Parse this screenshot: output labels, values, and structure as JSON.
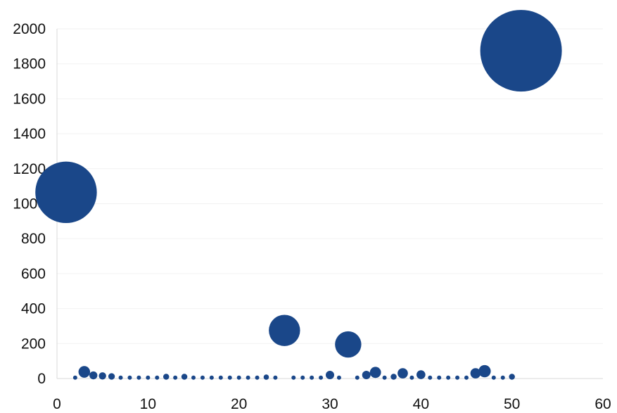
{
  "chart_data": {
    "type": "scatter",
    "title": "",
    "xlabel": "",
    "ylabel": "",
    "xlim": [
      0,
      60
    ],
    "ylim": [
      0,
      2000
    ],
    "x_ticks": [
      0,
      10,
      20,
      30,
      40,
      50,
      60
    ],
    "y_ticks": [
      0,
      200,
      400,
      600,
      800,
      1000,
      1200,
      1400,
      1600,
      1800,
      2000
    ],
    "grid": true,
    "legend": "none",
    "color": "#1a4789",
    "series": [
      {
        "x": [
          1,
          2,
          3,
          4,
          5,
          6,
          7,
          8,
          9,
          10,
          11,
          12,
          13,
          14,
          15,
          16,
          17,
          18,
          19,
          20,
          21,
          22,
          23,
          24,
          25,
          26,
          27,
          28,
          29,
          30,
          31,
          32,
          33,
          34,
          35,
          36,
          37,
          38,
          39,
          40,
          41,
          42,
          43,
          44,
          45,
          46,
          47,
          48,
          49,
          50,
          51
        ],
        "y": [
          1065,
          5,
          38,
          18,
          15,
          12,
          5,
          5,
          5,
          5,
          5,
          10,
          5,
          10,
          5,
          5,
          5,
          5,
          5,
          5,
          5,
          5,
          8,
          5,
          275,
          5,
          5,
          5,
          5,
          20,
          5,
          195,
          5,
          20,
          35,
          5,
          10,
          30,
          5,
          22,
          5,
          5,
          5,
          5,
          5,
          30,
          42,
          5,
          5,
          10,
          1875
        ],
        "size": [
          1065,
          5,
          38,
          18,
          15,
          12,
          5,
          5,
          5,
          5,
          5,
          10,
          5,
          10,
          5,
          5,
          5,
          5,
          5,
          5,
          5,
          5,
          8,
          5,
          275,
          5,
          5,
          5,
          5,
          20,
          5,
          195,
          5,
          20,
          35,
          5,
          10,
          30,
          5,
          22,
          5,
          5,
          5,
          5,
          5,
          30,
          42,
          5,
          5,
          10,
          1875
        ]
      }
    ]
  }
}
